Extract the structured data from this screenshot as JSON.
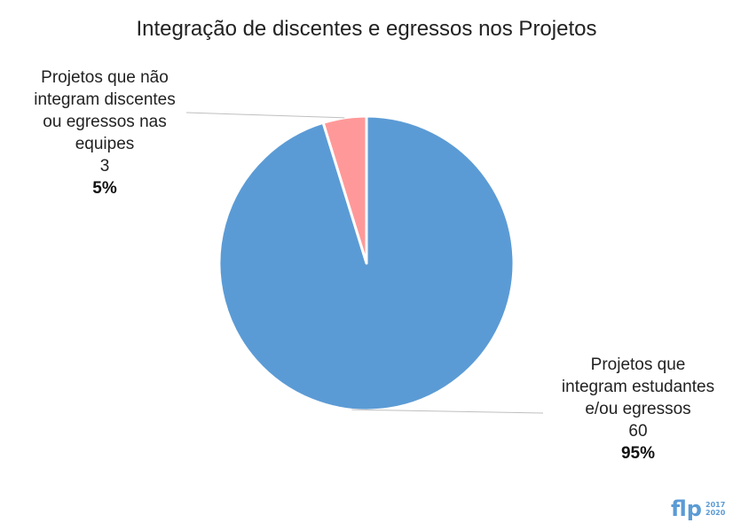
{
  "chart_data": {
    "type": "pie",
    "title": "Integração de discentes e egressos nos Projetos",
    "slices": [
      {
        "label_lines": [
          "Projetos  que não",
          "integram discentes",
          "ou egressos nas",
          "equipes"
        ],
        "value": 3,
        "percent": "5%",
        "color": "#ff9999"
      },
      {
        "label_lines": [
          "Projetos que",
          "integram estudantes",
          "e/ou egressos"
        ],
        "value": 60,
        "percent": "95%",
        "color": "#5b9bd5"
      }
    ]
  },
  "logo": {
    "letters": "flp",
    "year_top": "2017",
    "year_bottom": "2020"
  }
}
